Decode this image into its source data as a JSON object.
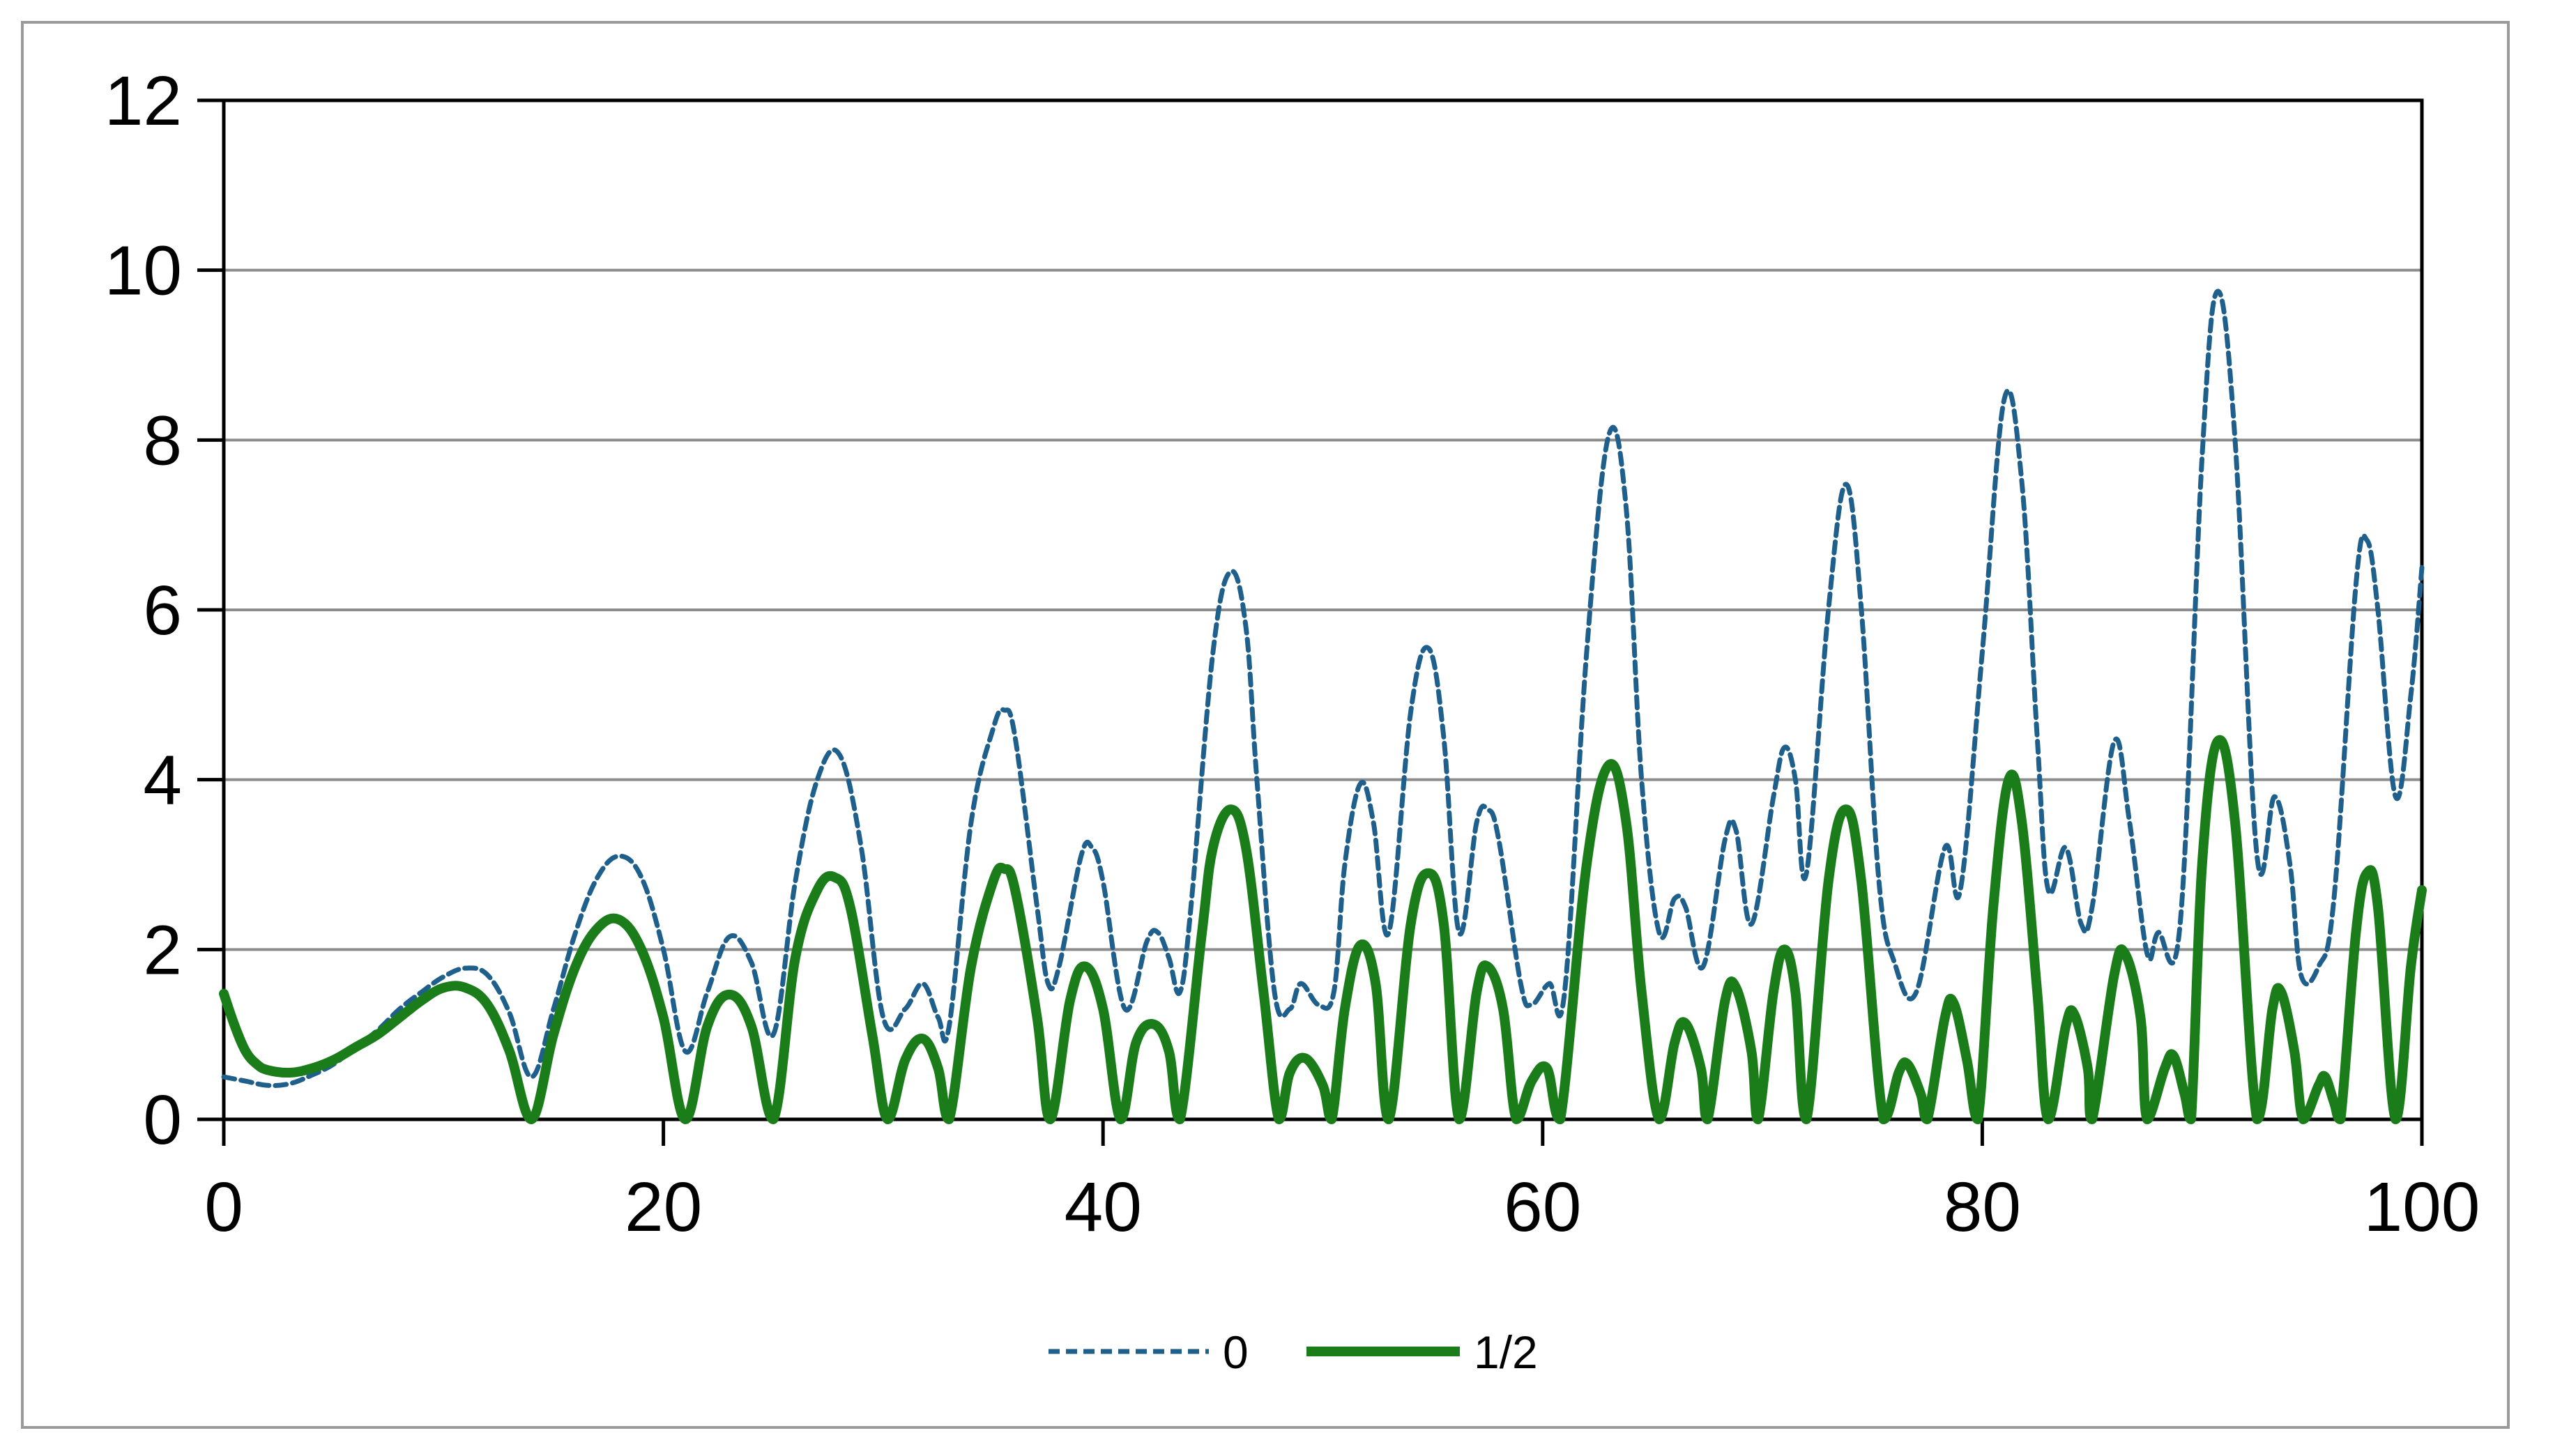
{
  "chart_data": {
    "type": "line",
    "title": "",
    "xlabel": "",
    "ylabel": "",
    "xlim": [
      0,
      100
    ],
    "ylim": [
      0,
      12
    ],
    "x_ticks": [
      0,
      20,
      40,
      60,
      80,
      100
    ],
    "y_ticks": [
      0,
      2,
      4,
      6,
      8,
      10,
      12
    ],
    "x_tick_labels": [
      "0",
      "20",
      "40",
      "60",
      "80",
      "100"
    ],
    "y_tick_labels": [
      "0",
      "2",
      "4",
      "6",
      "8",
      "10",
      "12"
    ],
    "grid": "horizontal",
    "legend": "bottom-center",
    "series": [
      {
        "name": "0",
        "color": "#1f5f8b",
        "style": "dashed",
        "points": [
          [
            0,
            0.5
          ],
          [
            1,
            0.45
          ],
          [
            2,
            0.4
          ],
          [
            3,
            0.42
          ],
          [
            4,
            0.52
          ],
          [
            5,
            0.65
          ],
          [
            6,
            0.85
          ],
          [
            7,
            1.05
          ],
          [
            8,
            1.3
          ],
          [
            9,
            1.5
          ],
          [
            10,
            1.68
          ],
          [
            11,
            1.78
          ],
          [
            12,
            1.7
          ],
          [
            13,
            1.25
          ],
          [
            14,
            0.5
          ],
          [
            15,
            1.3
          ],
          [
            16,
            2.2
          ],
          [
            17,
            2.85
          ],
          [
            18,
            3.1
          ],
          [
            19,
            2.85
          ],
          [
            20,
            2.0
          ],
          [
            21,
            0.8
          ],
          [
            22,
            1.5
          ],
          [
            23,
            2.15
          ],
          [
            24,
            1.85
          ],
          [
            25,
            1.0
          ],
          [
            26,
            2.8
          ],
          [
            27,
            4.0
          ],
          [
            28,
            4.3
          ],
          [
            29,
            3.2
          ],
          [
            30,
            1.2
          ],
          [
            31,
            1.3
          ],
          [
            31.8,
            1.6
          ],
          [
            32.5,
            1.2
          ],
          [
            33,
            1.1
          ],
          [
            34,
            3.5
          ],
          [
            35,
            4.6
          ],
          [
            35.5,
            4.82
          ],
          [
            36,
            4.5
          ],
          [
            37,
            2.5
          ],
          [
            37.5,
            1.6
          ],
          [
            38,
            1.8
          ],
          [
            39,
            3.1
          ],
          [
            39.5,
            3.2
          ],
          [
            40,
            2.8
          ],
          [
            41,
            1.3
          ],
          [
            42,
            2.1
          ],
          [
            42.5,
            2.2
          ],
          [
            43,
            1.9
          ],
          [
            43.5,
            1.5
          ],
          [
            44,
            2.5
          ],
          [
            45,
            5.5
          ],
          [
            45.8,
            6.45
          ],
          [
            46.5,
            5.8
          ],
          [
            47,
            4.0
          ],
          [
            47.8,
            1.5
          ],
          [
            48.5,
            1.3
          ],
          [
            49,
            1.6
          ],
          [
            49.8,
            1.35
          ],
          [
            50.5,
            1.5
          ],
          [
            51,
            3.0
          ],
          [
            51.7,
            3.95
          ],
          [
            52.3,
            3.5
          ],
          [
            53,
            2.2
          ],
          [
            54,
            4.8
          ],
          [
            54.8,
            5.55
          ],
          [
            55.5,
            4.5
          ],
          [
            56.2,
            2.2
          ],
          [
            57,
            3.5
          ],
          [
            57.5,
            3.65
          ],
          [
            58,
            3.3
          ],
          [
            59,
            1.6
          ],
          [
            59.5,
            1.35
          ],
          [
            60.3,
            1.6
          ],
          [
            61,
            1.5
          ],
          [
            62,
            5.5
          ],
          [
            63,
            8.05
          ],
          [
            63.8,
            7.2
          ],
          [
            64.5,
            4.0
          ],
          [
            65.3,
            2.2
          ],
          [
            66,
            2.6
          ],
          [
            66.5,
            2.5
          ],
          [
            67.3,
            1.8
          ],
          [
            68.3,
            3.3
          ],
          [
            68.8,
            3.4
          ],
          [
            69.5,
            2.3
          ],
          [
            70.5,
            3.8
          ],
          [
            71,
            4.38
          ],
          [
            71.5,
            4.0
          ],
          [
            72,
            2.9
          ],
          [
            73,
            6.0
          ],
          [
            73.8,
            7.48
          ],
          [
            74.5,
            6.0
          ],
          [
            75.3,
            2.8
          ],
          [
            76,
            1.85
          ],
          [
            77,
            1.5
          ],
          [
            78.3,
            3.2
          ],
          [
            79,
            2.7
          ],
          [
            80,
            5.5
          ],
          [
            81,
            8.48
          ],
          [
            81.8,
            7.5
          ],
          [
            82.5,
            4.5
          ],
          [
            83,
            2.7
          ],
          [
            83.8,
            3.2
          ],
          [
            84.5,
            2.3
          ],
          [
            85,
            2.5
          ],
          [
            86,
            4.45
          ],
          [
            86.7,
            3.5
          ],
          [
            87.5,
            1.95
          ],
          [
            88,
            2.2
          ],
          [
            89,
            2.3
          ],
          [
            90,
            7.8
          ],
          [
            90.7,
            9.75
          ],
          [
            91.5,
            8.0
          ],
          [
            92.5,
            3.1
          ],
          [
            93.3,
            3.8
          ],
          [
            94,
            3.0
          ],
          [
            94.5,
            1.7
          ],
          [
            95.3,
            1.8
          ],
          [
            96,
            2.6
          ],
          [
            97,
            6.3
          ],
          [
            97.5,
            6.82
          ],
          [
            98,
            6.0
          ],
          [
            98.8,
            3.8
          ],
          [
            99.5,
            5.0
          ],
          [
            100,
            6.5
          ]
        ]
      },
      {
        "name": "1/2",
        "color": "#1a7d1a",
        "style": "solid",
        "points": [
          [
            0,
            1.48
          ],
          [
            0.5,
            1.1
          ],
          [
            1,
            0.8
          ],
          [
            1.5,
            0.65
          ],
          [
            2,
            0.58
          ],
          [
            3,
            0.55
          ],
          [
            4,
            0.6
          ],
          [
            5,
            0.7
          ],
          [
            6,
            0.85
          ],
          [
            7,
            1.0
          ],
          [
            8,
            1.2
          ],
          [
            9,
            1.4
          ],
          [
            10,
            1.55
          ],
          [
            11,
            1.55
          ],
          [
            12,
            1.35
          ],
          [
            13,
            0.8
          ],
          [
            14,
            0
          ],
          [
            15,
            1.0
          ],
          [
            16,
            1.8
          ],
          [
            17,
            2.25
          ],
          [
            18,
            2.35
          ],
          [
            19,
            2.0
          ],
          [
            20,
            1.2
          ],
          [
            21,
            0
          ],
          [
            22,
            1.1
          ],
          [
            23,
            1.47
          ],
          [
            24,
            1.1
          ],
          [
            25,
            0
          ],
          [
            26,
            1.9
          ],
          [
            27,
            2.7
          ],
          [
            27.8,
            2.85
          ],
          [
            28.5,
            2.5
          ],
          [
            29.5,
            1.0
          ],
          [
            30.2,
            0
          ],
          [
            31,
            0.7
          ],
          [
            31.8,
            0.95
          ],
          [
            32.5,
            0.6
          ],
          [
            33,
            0
          ],
          [
            34,
            1.8
          ],
          [
            35,
            2.8
          ],
          [
            35.5,
            2.95
          ],
          [
            36,
            2.7
          ],
          [
            37,
            1.2
          ],
          [
            37.6,
            0
          ],
          [
            38.5,
            1.4
          ],
          [
            39.2,
            1.8
          ],
          [
            40,
            1.3
          ],
          [
            40.8,
            0
          ],
          [
            41.5,
            0.9
          ],
          [
            42.3,
            1.12
          ],
          [
            43,
            0.8
          ],
          [
            43.5,
            0
          ],
          [
            44.5,
            2.2
          ],
          [
            45,
            3.2
          ],
          [
            45.8,
            3.65
          ],
          [
            46.5,
            3.2
          ],
          [
            47.3,
            1.5
          ],
          [
            48,
            0
          ],
          [
            48.5,
            0.55
          ],
          [
            49.2,
            0.72
          ],
          [
            50,
            0.4
          ],
          [
            50.4,
            0
          ],
          [
            51,
            1.3
          ],
          [
            51.7,
            2.05
          ],
          [
            52.4,
            1.6
          ],
          [
            53,
            0
          ],
          [
            54,
            2.3
          ],
          [
            54.8,
            2.9
          ],
          [
            55.5,
            2.3
          ],
          [
            56.2,
            0
          ],
          [
            57,
            1.5
          ],
          [
            57.5,
            1.8
          ],
          [
            58.2,
            1.3
          ],
          [
            58.8,
            0
          ],
          [
            59.5,
            0.45
          ],
          [
            60.2,
            0.6
          ],
          [
            60.8,
            0
          ],
          [
            62,
            3.0
          ],
          [
            63,
            4.17
          ],
          [
            63.8,
            3.5
          ],
          [
            64.5,
            1.5
          ],
          [
            65.3,
            0
          ],
          [
            66,
            0.9
          ],
          [
            66.5,
            1.13
          ],
          [
            67.2,
            0.6
          ],
          [
            67.5,
            0
          ],
          [
            68.3,
            1.4
          ],
          [
            68.8,
            1.55
          ],
          [
            69.5,
            0.8
          ],
          [
            69.8,
            0
          ],
          [
            70.5,
            1.5
          ],
          [
            71,
            2.0
          ],
          [
            71.5,
            1.5
          ],
          [
            72,
            0
          ],
          [
            73,
            2.8
          ],
          [
            73.8,
            3.65
          ],
          [
            74.5,
            2.8
          ],
          [
            75.5,
            0
          ],
          [
            76.2,
            0.55
          ],
          [
            76.6,
            0.65
          ],
          [
            77.2,
            0.3
          ],
          [
            77.5,
            0
          ],
          [
            78.3,
            1.2
          ],
          [
            78.7,
            1.37
          ],
          [
            79.3,
            0.7
          ],
          [
            79.8,
            0
          ],
          [
            80.5,
            2.5
          ],
          [
            81.2,
            4.0
          ],
          [
            81.8,
            3.5
          ],
          [
            82.5,
            1.5
          ],
          [
            83,
            0
          ],
          [
            83.8,
            1.1
          ],
          [
            84.2,
            1.23
          ],
          [
            84.8,
            0.6
          ],
          [
            85,
            0
          ],
          [
            86,
            1.7
          ],
          [
            86.5,
            1.95
          ],
          [
            87.2,
            1.2
          ],
          [
            87.5,
            0
          ],
          [
            88.3,
            0.6
          ],
          [
            88.7,
            0.75
          ],
          [
            89.2,
            0.3
          ],
          [
            89.5,
            0
          ],
          [
            90,
            3.0
          ],
          [
            90.7,
            4.45
          ],
          [
            91.5,
            3.5
          ],
          [
            92.5,
            0
          ],
          [
            93.2,
            1.3
          ],
          [
            93.6,
            1.5
          ],
          [
            94.2,
            0.8
          ],
          [
            94.6,
            0
          ],
          [
            95.3,
            0.4
          ],
          [
            95.6,
            0.5
          ],
          [
            96,
            0.2
          ],
          [
            96.3,
            0
          ],
          [
            97,
            2.2
          ],
          [
            97.5,
            2.9
          ],
          [
            98,
            2.5
          ],
          [
            98.8,
            0
          ],
          [
            99.5,
            1.8
          ],
          [
            100,
            2.7
          ]
        ]
      }
    ]
  }
}
